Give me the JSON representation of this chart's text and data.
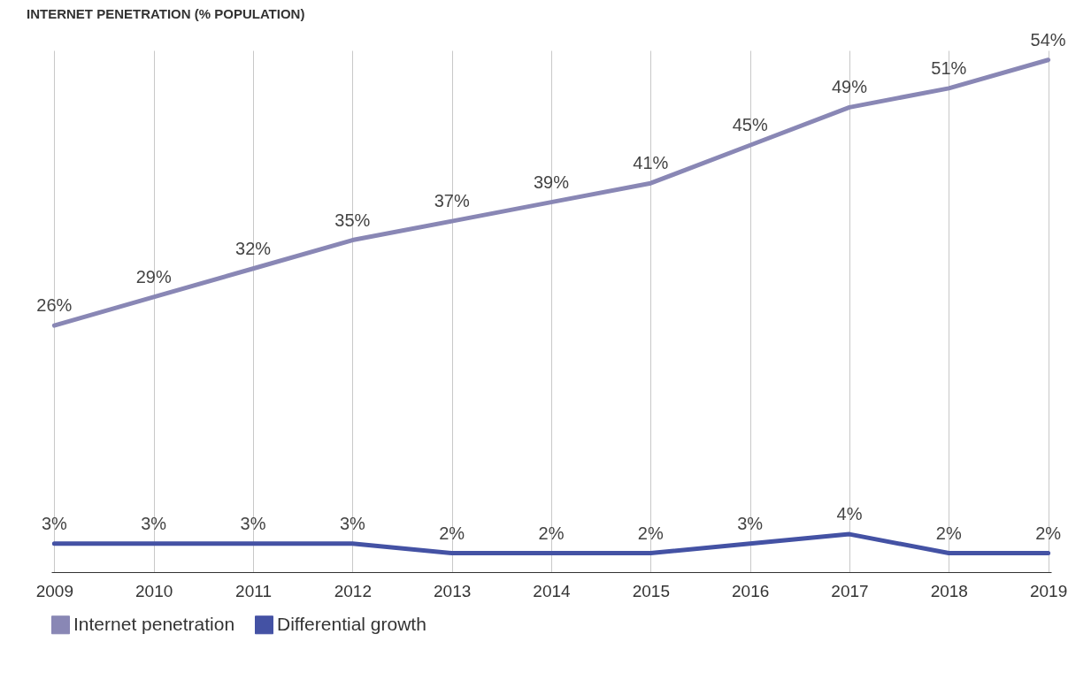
{
  "chart_data": {
    "type": "line",
    "title": "INTERNET PENETRATION (% POPULATION)",
    "categories": [
      "2009",
      "2010",
      "2011",
      "2012",
      "2013",
      "2014",
      "2015",
      "2016",
      "2017",
      "2018",
      "2019"
    ],
    "series": [
      {
        "name": "Internet penetration",
        "color": "#8987b5",
        "values": [
          26,
          29,
          32,
          35,
          37,
          39,
          41,
          45,
          49,
          51,
          54
        ],
        "value_labels": [
          "26%",
          "29%",
          "32%",
          "35%",
          "37%",
          "39%",
          "41%",
          "45%",
          "49%",
          "51%",
          "54%"
        ]
      },
      {
        "name": "Differential growth",
        "color": "#4452a4",
        "values": [
          3,
          3,
          3,
          3,
          2,
          2,
          2,
          3,
          4,
          2,
          2
        ],
        "value_labels": [
          "3%",
          "3%",
          "3%",
          "3%",
          "2%",
          "2%",
          "2%",
          "3%",
          "4%",
          "2%",
          "2%"
        ]
      }
    ],
    "ylim": [
      0,
      55
    ],
    "grid": "x",
    "tick_labels": "x",
    "legend": "bottom left",
    "marker": "none",
    "line_style": "solid"
  }
}
